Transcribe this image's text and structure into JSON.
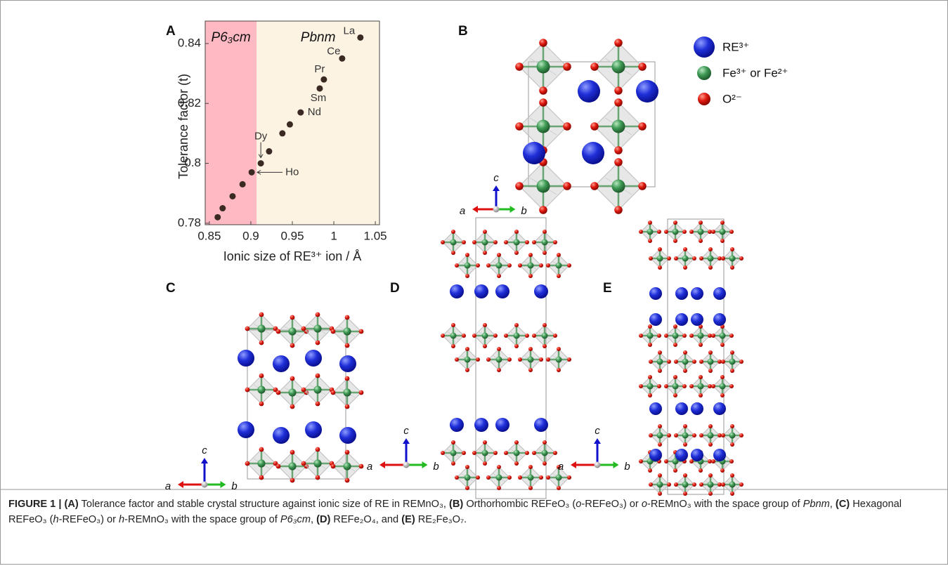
{
  "panels": {
    "a": "A",
    "b": "B",
    "c": "C",
    "d": "D",
    "e": "E"
  },
  "chart_data": {
    "type": "scatter",
    "x_label": "Ionic size of RE³⁺ ion / Å",
    "y_label": "Tolerance factor (t)",
    "x": [
      1.032,
      1.01,
      0.988,
      0.983,
      0.96,
      0.947,
      0.938,
      0.922,
      0.912,
      0.901,
      0.89,
      0.878,
      0.866,
      0.86
    ],
    "values": [
      0.842,
      0.835,
      0.828,
      0.825,
      0.817,
      0.813,
      0.81,
      0.804,
      0.8,
      0.797,
      0.793,
      0.789,
      0.785,
      0.782
    ],
    "point_labels": [
      "La",
      "Ce",
      "Pr",
      "Sm",
      "Nd",
      null,
      null,
      null,
      "Dy",
      "Ho",
      null,
      null,
      null,
      null
    ],
    "color": "#3b2a24",
    "regions": [
      {
        "label": "P6₃cm",
        "range": [
          0.845,
          0.907
        ],
        "color": "#ffb9c2"
      },
      {
        "label": "Pbnm",
        "range": [
          0.907,
          1.055
        ],
        "color": "#fdf3e3"
      }
    ],
    "xlim": [
      0.845,
      1.055
    ],
    "ylim": [
      0.7795,
      0.8475
    ],
    "xticks": [
      0.85,
      0.9,
      0.95,
      1,
      1.05
    ],
    "yticks": [
      0.78,
      0.8,
      0.82,
      0.84
    ]
  },
  "legend": [
    "RE³⁺",
    "Fe³⁺ or Fe²⁺",
    "O²⁻"
  ],
  "axes_labels": {
    "a": "a",
    "b": "b",
    "c": "c"
  },
  "caption": [
    "FIGURE 1 | (A)",
    " Tolerance factor and stable crystal structure against ionic size of RE in REMnO₃, ",
    "(B)",
    " Orthorhombic REFeO₃ (",
    "o",
    "-REFeO₃) or ",
    "o",
    "-REMnO₃ with the space group of ",
    "Pbnm",
    ", ",
    "(C)",
    " Hexagonal REFeO₃ (",
    "h",
    "-REFeO₃) or ",
    "h",
    "-REMnO₃ with the space group of ",
    "P6₃cm",
    ", ",
    "(D)",
    " REFe₂O₄, and ",
    "(E)",
    " RE₂Fe₃O₇."
  ]
}
